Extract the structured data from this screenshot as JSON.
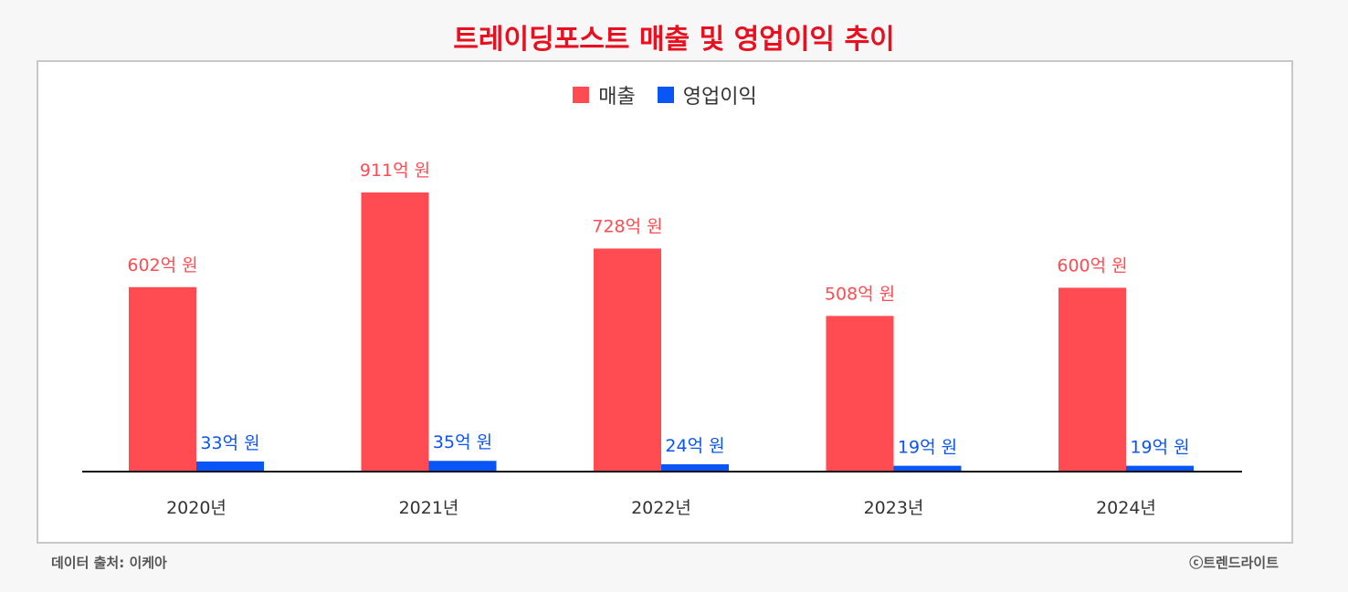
{
  "chart_data": {
    "type": "bar",
    "title": "트레이딩포스트 매출 및 영업이익 추이",
    "categories": [
      "2020년",
      "2021년",
      "2022년",
      "2023년",
      "2024년"
    ],
    "series": [
      {
        "name": "매출",
        "color": "#ff4b51",
        "values": [
          602,
          911,
          728,
          508,
          600
        ],
        "labels": [
          "602억 원",
          "911억 원",
          "728억 원",
          "508억 원",
          "600억 원"
        ]
      },
      {
        "name": "영업이익",
        "color": "#0a55f5",
        "values": [
          33,
          35,
          24,
          19,
          19
        ],
        "labels": [
          "33억 원",
          "35억 원",
          "24억 원",
          "19억 원",
          "19억 원"
        ]
      }
    ],
    "ylim": [
      0,
      911
    ],
    "legend": "top-center",
    "grid": false
  },
  "footer": {
    "source": "데이터 출처: 이케아",
    "credit": "ⓒ트렌드라이트"
  }
}
